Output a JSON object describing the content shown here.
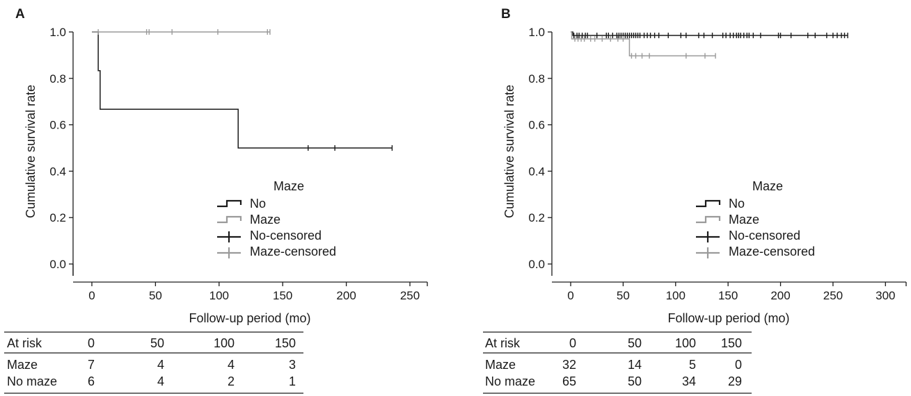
{
  "chart_data": [
    {
      "type": "line",
      "panel": "A",
      "ylabel": "Cumulative survival rate",
      "xlabel": "Follow-up period (mo)",
      "xticks": [
        0,
        50,
        100,
        150,
        200,
        250
      ],
      "yticks": [
        "0.0",
        "0.2",
        "0.4",
        "0.6",
        "0.8",
        "1.0"
      ],
      "xlim": [
        -10,
        265
      ],
      "ylim": [
        -0.05,
        1.02
      ],
      "legend": {
        "title": "Maze",
        "entries": [
          "No",
          "Maze",
          "No-censored",
          "Maze-censored"
        ]
      },
      "series": [
        {
          "name": "No",
          "color": "#1a1a1a",
          "steps": [
            [
              0,
              1.0
            ],
            [
              5,
              0.833
            ],
            [
              6.5,
              0.667
            ],
            [
              115,
              0.5
            ],
            [
              236,
              0.5
            ]
          ],
          "censored": [
            [
              170,
              0.5
            ],
            [
              191,
              0.5
            ],
            [
              236,
              0.5
            ]
          ]
        },
        {
          "name": "Maze",
          "color": "#9a9a9a",
          "steps": [
            [
              0,
              1.0
            ],
            [
              140,
              1.0
            ]
          ],
          "censored": [
            [
              5,
              1.0
            ],
            [
              43,
              1.0
            ],
            [
              45,
              1.0
            ],
            [
              63,
              1.0
            ],
            [
              99,
              1.0
            ],
            [
              138,
              1.0
            ],
            [
              140,
              1.0
            ]
          ]
        }
      ],
      "risk_table": {
        "header": [
          "At risk",
          "0",
          "50",
          "100",
          "150"
        ],
        "rows": [
          [
            "Maze",
            "7",
            "4",
            "4",
            "3"
          ],
          [
            "No maze",
            "6",
            "4",
            "2",
            "1"
          ]
        ]
      }
    },
    {
      "type": "line",
      "panel": "B",
      "ylabel": "Cumulative survival rate",
      "xlabel": "Follow-up period (mo)",
      "xticks": [
        0,
        50,
        100,
        150,
        200,
        250,
        300
      ],
      "yticks": [
        "0.0",
        "0.2",
        "0.4",
        "0.6",
        "0.8",
        "1.0"
      ],
      "xlim": [
        -10,
        310
      ],
      "ylim": [
        -0.05,
        1.02
      ],
      "legend": {
        "title": "Maze",
        "entries": [
          "No",
          "Maze",
          "No-censored",
          "Maze-censored"
        ]
      },
      "series": [
        {
          "name": "No",
          "color": "#1a1a1a",
          "steps": [
            [
              0,
              1.0
            ],
            [
              2,
              0.985
            ],
            [
              264,
              0.985
            ]
          ],
          "censored": [
            [
              3,
              0.985
            ],
            [
              6,
              0.985
            ],
            [
              8,
              0.985
            ],
            [
              11,
              0.985
            ],
            [
              14,
              0.985
            ],
            [
              16,
              0.985
            ],
            [
              25,
              0.985
            ],
            [
              34,
              0.985
            ],
            [
              36,
              0.985
            ],
            [
              40,
              0.985
            ],
            [
              44,
              0.985
            ],
            [
              46,
              0.985
            ],
            [
              48,
              0.985
            ],
            [
              50,
              0.985
            ],
            [
              52,
              0.985
            ],
            [
              54,
              0.985
            ],
            [
              56,
              0.985
            ],
            [
              58,
              0.985
            ],
            [
              60,
              0.985
            ],
            [
              62,
              0.985
            ],
            [
              64,
              0.985
            ],
            [
              66,
              0.985
            ],
            [
              70,
              0.985
            ],
            [
              73,
              0.985
            ],
            [
              76,
              0.985
            ],
            [
              80,
              0.985
            ],
            [
              84,
              0.985
            ],
            [
              93,
              0.985
            ],
            [
              105,
              0.985
            ],
            [
              110,
              0.985
            ],
            [
              122,
              0.985
            ],
            [
              127,
              0.985
            ],
            [
              135,
              0.985
            ],
            [
              145,
              0.985
            ],
            [
              148,
              0.985
            ],
            [
              152,
              0.985
            ],
            [
              155,
              0.985
            ],
            [
              158,
              0.985
            ],
            [
              160,
              0.985
            ],
            [
              162,
              0.985
            ],
            [
              165,
              0.985
            ],
            [
              168,
              0.985
            ],
            [
              170,
              0.985
            ],
            [
              174,
              0.985
            ],
            [
              181,
              0.985
            ],
            [
              198,
              0.985
            ],
            [
              200,
              0.985
            ],
            [
              210,
              0.985
            ],
            [
              226,
              0.985
            ],
            [
              233,
              0.985
            ],
            [
              244,
              0.985
            ],
            [
              250,
              0.985
            ],
            [
              254,
              0.985
            ],
            [
              258,
              0.985
            ],
            [
              261,
              0.985
            ],
            [
              264,
              0.985
            ]
          ]
        },
        {
          "name": "Maze",
          "color": "#9a9a9a",
          "steps": [
            [
              0,
              1.0
            ],
            [
              1,
              0.97
            ],
            [
              55,
              0.97
            ],
            [
              56,
              0.897
            ],
            [
              138,
              0.897
            ]
          ],
          "censored": [
            [
              4,
              0.97
            ],
            [
              7,
              0.97
            ],
            [
              10,
              0.97
            ],
            [
              13,
              0.97
            ],
            [
              19,
              0.97
            ],
            [
              23,
              0.97
            ],
            [
              30,
              0.97
            ],
            [
              38,
              0.97
            ],
            [
              45,
              0.97
            ],
            [
              50,
              0.97
            ],
            [
              58,
              0.897
            ],
            [
              62,
              0.897
            ],
            [
              68,
              0.897
            ],
            [
              75,
              0.897
            ],
            [
              110,
              0.897
            ],
            [
              128,
              0.897
            ],
            [
              138,
              0.897
            ]
          ]
        }
      ],
      "risk_table": {
        "header": [
          "At risk",
          "0",
          "50",
          "100",
          "150"
        ],
        "rows": [
          [
            "Maze",
            "32",
            "14",
            "5",
            "0"
          ],
          [
            "No maze",
            "65",
            "50",
            "34",
            "29"
          ]
        ]
      }
    }
  ]
}
